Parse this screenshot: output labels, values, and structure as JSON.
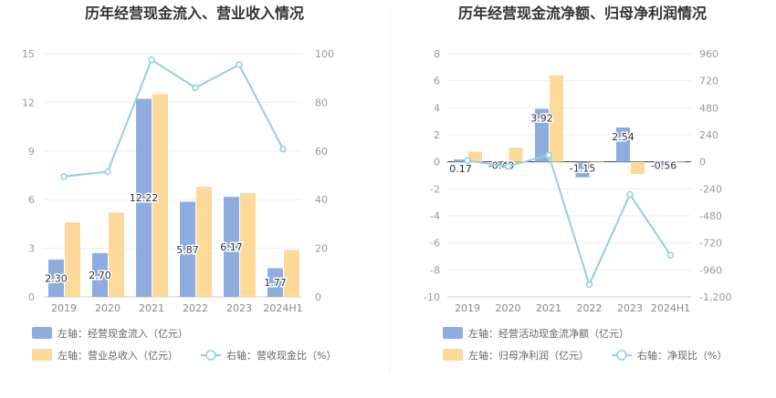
{
  "colors": {
    "bar1": "#8eadde",
    "bar2": "#fdd99a",
    "line": "#8dd3dc",
    "grid": "#eeeeee",
    "axis": "#cccccc",
    "zero": "#444444"
  },
  "chart_data": [
    {
      "type": "bar",
      "title": "历年经营现金流入、营业收入情况",
      "categories": [
        "2019",
        "2020",
        "2021",
        "2022",
        "2023",
        "2024H1"
      ],
      "y_left": {
        "ylim": [
          0,
          15
        ],
        "ticks": [
          "0",
          "3",
          "6",
          "9",
          "12",
          "15"
        ]
      },
      "y_right": {
        "ylim": [
          0,
          100
        ],
        "ticks": [
          "0",
          "20",
          "40",
          "60",
          "80",
          "100"
        ]
      },
      "grid": true,
      "legend_position": "bottom",
      "series": [
        {
          "name": "左轴：经营现金流入（亿元）",
          "axis": "left",
          "kind": "bar",
          "values": [
            2.3,
            2.7,
            12.22,
            5.87,
            6.17,
            1.77
          ],
          "labels": [
            "2.30",
            "2.70",
            "12.22",
            "5.87",
            "6.17",
            "1.77"
          ]
        },
        {
          "name": "左轴：营业总收入（亿元）",
          "axis": "left",
          "kind": "bar",
          "values": [
            4.6,
            5.2,
            12.5,
            6.8,
            6.4,
            2.9
          ]
        },
        {
          "name": "右轴：营收现金比（%）",
          "axis": "right",
          "kind": "line",
          "values": [
            49.5,
            51.5,
            97.5,
            86.0,
            95.5,
            60.8
          ]
        }
      ]
    },
    {
      "type": "bar",
      "title": "历年经营现金流净额、归母净利润情况",
      "categories": [
        "2019",
        "2020",
        "2021",
        "2022",
        "2023",
        "2024H1"
      ],
      "y_left": {
        "ylim": [
          -10,
          8
        ],
        "ticks": [
          "-10",
          "-8",
          "-6",
          "-4",
          "-2",
          "0",
          "2",
          "4",
          "6",
          "8"
        ]
      },
      "y_right": {
        "ylim": [
          -1200,
          960
        ],
        "ticks": [
          "-1,200",
          "-960",
          "-720",
          "-480",
          "-240",
          "0",
          "240",
          "480",
          "720",
          "960"
        ]
      },
      "grid": true,
      "legend_position": "bottom",
      "series": [
        {
          "name": "左轴：经营活动现金流净额（亿元）",
          "axis": "left",
          "kind": "bar",
          "values": [
            0.17,
            -0.49,
            3.92,
            -1.15,
            2.54,
            -0.56
          ],
          "labels": [
            "0.17",
            "-0.49",
            "3.92",
            "-1.15",
            "2.54",
            "-0.56"
          ]
        },
        {
          "name": "左轴：归母净利润（亿元）",
          "axis": "left",
          "kind": "bar",
          "values": [
            0.75,
            1.05,
            6.4,
            0.05,
            -0.9,
            0.04
          ]
        },
        {
          "name": "右轴：净现比（%）",
          "axis": "right",
          "kind": "line",
          "values": [
            10,
            -40,
            60,
            -1090,
            -290,
            -830
          ]
        }
      ]
    }
  ]
}
